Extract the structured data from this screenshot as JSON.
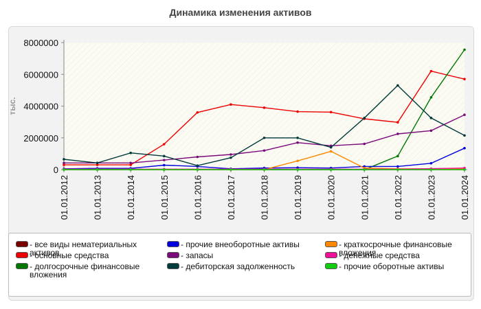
{
  "chart_data": {
    "type": "line",
    "title": "Динамика изменения активов",
    "ylabel": "тыс.",
    "xlabel": "",
    "ylim": [
      0,
      8000000
    ],
    "yticks": [
      0,
      2000000,
      4000000,
      6000000,
      8000000
    ],
    "grid": false,
    "legend_position": "bottom",
    "categories": [
      "01.01.2012",
      "01.01.2013",
      "01.01.2014",
      "01.01.2015",
      "01.01.2016",
      "01.01.2017",
      "01.01.2018",
      "01.01.2019",
      "01.01.2020",
      "01.01.2021",
      "01.01.2022",
      "01.01.2023",
      "01.01.2024"
    ],
    "series": [
      {
        "name": "- все виды нематериальных активов",
        "color": "#7a0000",
        "values": [
          0,
          0,
          0,
          0,
          0,
          0,
          0,
          0,
          0,
          0,
          0,
          0,
          0
        ]
      },
      {
        "name": "- основные средства",
        "color": "#ee0000",
        "values": [
          300000,
          300000,
          300000,
          1600000,
          3600000,
          4100000,
          3900000,
          3650000,
          3620000,
          3200000,
          2980000,
          6200000,
          5700000
        ]
      },
      {
        "name": "- долгосрочные финансовые вложения",
        "color": "#007700",
        "values": [
          0,
          0,
          0,
          0,
          0,
          0,
          0,
          0,
          0,
          0,
          850000,
          4550000,
          7550000
        ]
      },
      {
        "name": "- прочие внеоборотные активы",
        "color": "#0000dd",
        "values": [
          50000,
          80000,
          80000,
          280000,
          200000,
          50000,
          100000,
          120000,
          100000,
          200000,
          200000,
          400000,
          1350000
        ]
      },
      {
        "name": "- запасы",
        "color": "#7a0a7a",
        "values": [
          420000,
          420000,
          420000,
          600000,
          800000,
          950000,
          1200000,
          1700000,
          1500000,
          1620000,
          2250000,
          2450000,
          3450000
        ]
      },
      {
        "name": "- дебиторская задолженность",
        "color": "#003a3a",
        "values": [
          650000,
          420000,
          1050000,
          850000,
          250000,
          750000,
          2000000,
          2000000,
          1400000,
          3250000,
          5300000,
          3250000,
          2150000
        ]
      },
      {
        "name": "- краткосрочные финансовые вложения",
        "color": "#ff8800",
        "values": [
          0,
          0,
          0,
          0,
          0,
          0,
          0,
          550000,
          1150000,
          100000,
          50000,
          50000,
          50000
        ]
      },
      {
        "name": "- денежные средства",
        "color": "#ee1199",
        "values": [
          30000,
          30000,
          30000,
          30000,
          30000,
          30000,
          30000,
          30000,
          30000,
          30000,
          30000,
          60000,
          100000
        ]
      },
      {
        "name": "- прочие оборотные активы",
        "color": "#11cc11",
        "values": [
          0,
          0,
          0,
          0,
          0,
          0,
          0,
          0,
          0,
          0,
          0,
          0,
          0
        ]
      }
    ]
  }
}
